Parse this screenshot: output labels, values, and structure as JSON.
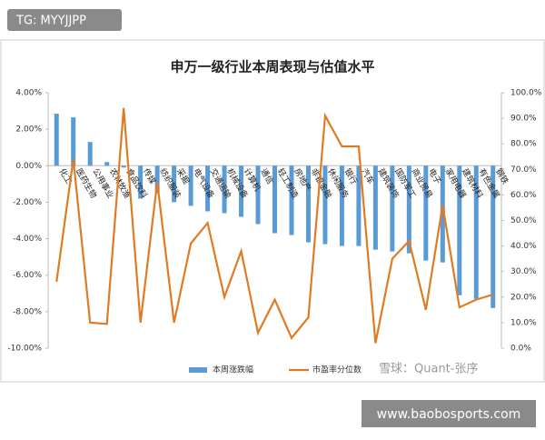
{
  "badge": "TG: MYYJJPP",
  "watermark": "雪球：Quant-张序",
  "footer_url": "www.baobosports.com",
  "chart_data": {
    "type": "bar-line",
    "title": "申万一级行业本周表现与估值水平",
    "categories": [
      "化工",
      "医药生物",
      "公用事业",
      "农林牧渔",
      "食品饮料",
      "传媒",
      "纺织服装",
      "采掘",
      "电气设备",
      "交通运输",
      "机械设备",
      "计算机",
      "通信",
      "轻工制造",
      "房地产",
      "非银金融",
      "休闲服务",
      "银行",
      "汽车",
      "建筑装饰",
      "国防军工",
      "商业贸易",
      "电子",
      "家用电器",
      "建筑材料",
      "有色金属",
      "钢铁"
    ],
    "series": [
      {
        "name": "本周涨跌幅",
        "type": "bar",
        "color": "#5b9bd5",
        "values": [
          2.85,
          2.65,
          1.3,
          0.2,
          -0.1,
          -1.8,
          -1.5,
          -2.0,
          -2.2,
          -2.5,
          -2.6,
          -2.8,
          -3.2,
          -3.7,
          -3.8,
          -4.2,
          -4.3,
          -4.4,
          -4.4,
          -4.6,
          -4.7,
          -4.8,
          -5.2,
          -5.3,
          -7.1,
          -7.3,
          -7.8
        ]
      },
      {
        "name": "市盈率分位数",
        "type": "line",
        "axis": "y2",
        "color": "#e07b24",
        "values": [
          26,
          74,
          10,
          9.5,
          94,
          10,
          65,
          10,
          41,
          49,
          20,
          38,
          6,
          19,
          4,
          12,
          91,
          79,
          79,
          2,
          35,
          42,
          15,
          56,
          16,
          19,
          21
        ]
      }
    ],
    "ylim": [
      -10,
      4
    ],
    "yticks": [
      {
        "value": -10,
        "label": "-10.00%"
      },
      {
        "value": -8,
        "label": "-8.00%"
      },
      {
        "value": -6,
        "label": "-6.00%"
      },
      {
        "value": -4,
        "label": "-4.00%"
      },
      {
        "value": -2,
        "label": "-2.00%"
      },
      {
        "value": 0,
        "label": "0.00%"
      },
      {
        "value": 2,
        "label": "2.00%"
      },
      {
        "value": 4,
        "label": "4.00%"
      }
    ],
    "y2lim": [
      0,
      100
    ],
    "y2ticks": [
      {
        "value": 0,
        "label": "0.0%"
      },
      {
        "value": 10,
        "label": "10.0%"
      },
      {
        "value": 20,
        "label": "20.0%"
      },
      {
        "value": 30,
        "label": "30.0%"
      },
      {
        "value": 40,
        "label": "40.0%"
      },
      {
        "value": 50,
        "label": "50.0%"
      },
      {
        "value": 60,
        "label": "60.0%"
      },
      {
        "value": 70,
        "label": "70.0%"
      },
      {
        "value": 80,
        "label": "80.0%"
      },
      {
        "value": 90,
        "label": "90.0%"
      },
      {
        "value": 100,
        "label": "100.0%"
      }
    ],
    "legend": "bottom"
  }
}
